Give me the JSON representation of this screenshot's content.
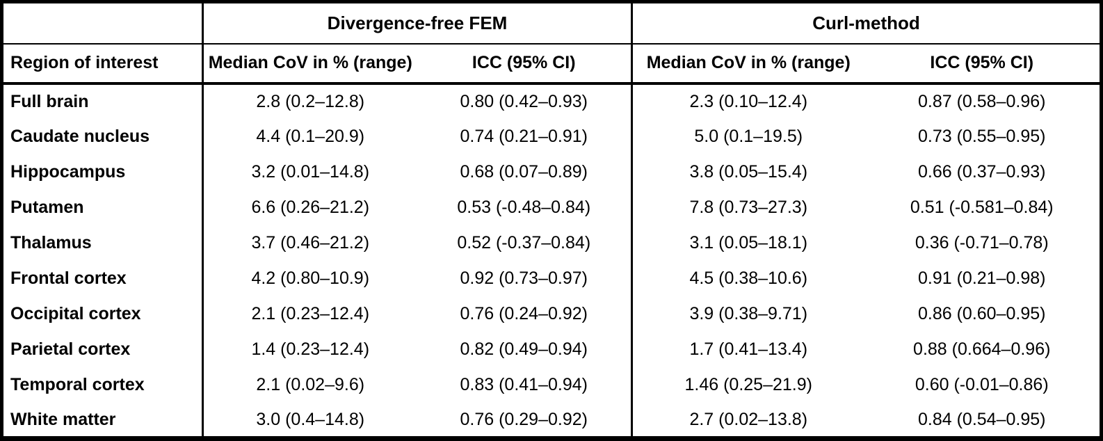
{
  "table": {
    "empty_header": "",
    "group_headers": {
      "fem": "Divergence-free FEM",
      "curl": "Curl-method"
    },
    "column_headers": {
      "region": "Region of interest",
      "fem_cov": "Median CoV in % (range)",
      "fem_icc": "ICC (95% CI)",
      "curl_cov": "Median CoV in % (range)",
      "curl_icc": "ICC (95% CI)"
    },
    "rows": [
      {
        "region": "Full brain",
        "fem_cov": "2.8 (0.2–12.8)",
        "fem_icc": "0.80 (0.42–0.93)",
        "curl_cov": "2.3 (0.10–12.4)",
        "curl_icc": "0.87 (0.58–0.96)"
      },
      {
        "region": "Caudate nucleus",
        "fem_cov": "4.4 (0.1–20.9)",
        "fem_icc": "0.74 (0.21–0.91)",
        "curl_cov": "5.0 (0.1–19.5)",
        "curl_icc": "0.73 (0.55–0.95)"
      },
      {
        "region": "Hippocampus",
        "fem_cov": "3.2 (0.01–14.8)",
        "fem_icc": "0.68 (0.07–0.89)",
        "curl_cov": "3.8 (0.05–15.4)",
        "curl_icc": "0.66 (0.37–0.93)"
      },
      {
        "region": "Putamen",
        "fem_cov": "6.6 (0.26–21.2)",
        "fem_icc": "0.53 (-0.48–0.84)",
        "curl_cov": "7.8 (0.73–27.3)",
        "curl_icc": "0.51 (-0.581–0.84)"
      },
      {
        "region": "Thalamus",
        "fem_cov": "3.7 (0.46–21.2)",
        "fem_icc": "0.52 (-0.37–0.84)",
        "curl_cov": "3.1 (0.05–18.1)",
        "curl_icc": "0.36 (-0.71–0.78)"
      },
      {
        "region": "Frontal cortex",
        "fem_cov": "4.2 (0.80–10.9)",
        "fem_icc": "0.92 (0.73–0.97)",
        "curl_cov": "4.5 (0.38–10.6)",
        "curl_icc": "0.91 (0.21–0.98)"
      },
      {
        "region": "Occipital cortex",
        "fem_cov": "2.1 (0.23–12.4)",
        "fem_icc": "0.76 (0.24–0.92)",
        "curl_cov": "3.9 (0.38–9.71)",
        "curl_icc": "0.86 (0.60–0.95)"
      },
      {
        "region": "Parietal cortex",
        "fem_cov": "1.4 (0.23–12.4)",
        "fem_icc": "0.82 (0.49–0.94)",
        "curl_cov": "1.7 (0.41–13.4)",
        "curl_icc": "0.88 (0.664–0.96)"
      },
      {
        "region": "Temporal cortex",
        "fem_cov": "2.1 (0.02–9.6)",
        "fem_icc": "0.83 (0.41–0.94)",
        "curl_cov": "1.46 (0.25–21.9)",
        "curl_icc": "0.60 (-0.01–0.86)"
      },
      {
        "region": "White matter",
        "fem_cov": "3.0 (0.4–14.8)",
        "fem_icc": "0.76 (0.29–0.92)",
        "curl_cov": "2.7 (0.02–13.8)",
        "curl_icc": "0.84 (0.54–0.95)"
      }
    ]
  }
}
